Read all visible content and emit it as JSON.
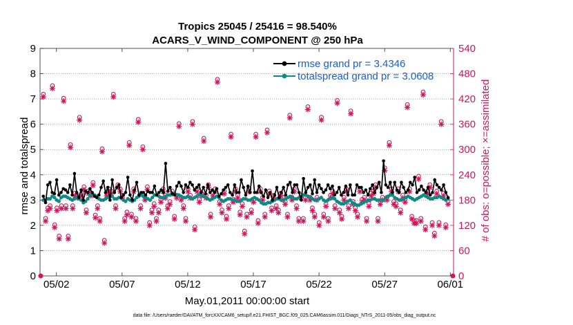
{
  "chart_data": {
    "type": "line",
    "title_line1": "Tropics 25045 / 25416 = 98.540%",
    "title_line2": "ACARS_V_WIND_COMPONENT @ 250 hPa",
    "xlabel": "May.01,2011 00:00:00 start",
    "ylabel_left": "rmse and totalspread",
    "ylabel_right": "# of obs: o=possible; ×=assimilated",
    "footer": "data file: /Users/raeder/DAI/ATM_forcXX/CAM6_setup/f.e21.FHIST_BGC.f09_025.CAM6assim.011/Diags_NTrS_2011-05/obs_diag_output.nc",
    "x_ticks": [
      "05/02",
      "05/07",
      "05/12",
      "05/17",
      "05/22",
      "05/27",
      "06/01"
    ],
    "x_tick_days": [
      2,
      7,
      12,
      17,
      22,
      27,
      32
    ],
    "xlim": [
      0.75,
      32.25
    ],
    "ylim_left": [
      0,
      9
    ],
    "y_ticks_left": [
      "0",
      "1",
      "2",
      "3",
      "4",
      "5",
      "6",
      "7",
      "8",
      "9"
    ],
    "ylim_right": [
      0,
      540
    ],
    "y_ticks_right": [
      "0",
      "60",
      "120",
      "180",
      "240",
      "300",
      "360",
      "420",
      "480",
      "540"
    ],
    "legend": [
      "rmse grand pr = 3.4346",
      "totalspread grand pr = 3.0608"
    ],
    "colors": {
      "rmse": "#000000",
      "spread": "#0e8a86",
      "obs": "#d4145a",
      "legend_text": "#1a5ed6"
    },
    "series": [
      {
        "name": "rmse",
        "values": [
          3.15,
          2.9,
          3.6,
          3.7,
          3.3,
          3.25,
          3.8,
          3.2,
          3.3,
          3.45,
          3.4,
          3.3,
          3.6,
          3.2,
          4.05,
          3.3,
          3.1,
          3.4,
          3.0,
          3.35,
          3.3,
          3.45,
          3.3,
          3.15,
          3.1,
          3.2,
          3.5,
          3.75,
          3.3,
          3.5,
          3.0,
          3.8,
          3.3,
          3.5,
          3.6,
          3.1,
          3.2,
          3.3,
          3.9,
          3.2,
          3.0,
          3.4,
          3.7,
          3.2,
          3.3,
          3.3,
          3.2,
          3.35,
          3.3,
          3.3,
          3.55,
          3.2,
          3.3,
          3.4,
          3.3,
          4.45,
          3.35,
          3.5,
          3.25,
          3.2,
          3.55,
          3.7,
          3.55,
          3.3,
          3.6,
          3.5,
          3.7,
          3.6,
          3.4,
          3.5,
          3.6,
          3.3,
          3.5,
          3.25,
          3.6,
          3.3,
          3.4,
          3.3,
          3.45,
          3.15,
          3.25,
          3.4,
          3.5,
          3.6,
          3.3,
          3.2,
          3.6,
          3.3,
          3.3,
          3.8,
          3.5,
          3.2,
          3.55,
          3.3,
          4.15,
          3.3,
          3.3,
          3.55,
          3.3,
          3.15,
          3.4,
          3.1,
          3.3,
          3.0,
          3.2,
          3.5,
          3.1,
          3.3,
          3.5,
          3.2,
          3.6,
          3.7,
          3.3,
          3.6,
          3.6,
          3.3,
          3.0,
          3.85,
          3.3,
          3.5,
          3.6,
          3.25,
          3.8,
          3.3,
          3.6,
          3.45,
          3.3,
          3.4,
          3.6,
          3.45,
          3.55,
          3.2,
          3.3,
          3.5,
          3.2,
          3.3,
          3.55,
          3.2,
          3.6,
          3.2,
          3.2,
          3.6,
          3.5,
          3.5,
          3.3,
          3.4,
          3.2,
          3.45,
          3.6,
          3.3,
          3.5,
          3.7,
          3.3,
          4.55,
          3.6,
          3.5,
          3.7,
          3.3,
          3.7,
          3.4,
          3.3,
          3.7,
          3.5,
          3.3,
          3.4,
          3.7,
          3.6,
          3.9,
          3.3,
          3.4,
          3.55,
          3.4,
          3.3,
          3.5,
          3.2,
          3.3,
          3.8,
          3.6,
          3.5,
          3.4,
          3.6,
          3.3,
          3.1
        ]
      },
      {
        "name": "totalspread",
        "values": [
          3.0,
          3.0,
          3.05,
          3.05,
          3.15,
          3.1,
          3.0,
          2.95,
          3.1,
          3.15,
          3.15,
          3.1,
          3.05,
          3.0,
          3.05,
          3.1,
          3.05,
          3.0,
          2.9,
          2.95,
          3.05,
          3.2,
          3.25,
          3.2,
          3.15,
          3.05,
          3.0,
          3.0,
          3.05,
          3.1,
          3.15,
          3.15,
          3.05,
          3.05,
          3.1,
          3.1,
          3.0,
          2.95,
          3.05,
          3.0,
          2.95,
          3.0,
          3.1,
          3.15,
          3.2,
          3.15,
          3.1,
          3.05,
          3.0,
          3.1,
          3.2,
          3.2,
          3.15,
          3.1,
          3.1,
          3.15,
          3.2,
          3.2,
          3.25,
          3.25,
          3.2,
          3.2,
          3.15,
          3.1,
          3.1,
          3.15,
          3.1,
          3.05,
          3.1,
          3.15,
          3.2,
          3.2,
          3.15,
          3.1,
          3.05,
          3.0,
          3.05,
          3.1,
          3.15,
          3.1,
          3.0,
          2.95,
          3.0,
          3.05,
          3.05,
          3.0,
          3.0,
          2.95,
          2.95,
          3.0,
          3.05,
          3.05,
          3.0,
          3.0,
          3.05,
          3.1,
          3.05,
          3.0,
          2.9,
          2.85,
          2.85,
          2.9,
          2.9,
          2.95,
          3.0,
          3.05,
          3.05,
          3.0,
          3.0,
          3.05,
          3.1,
          3.15,
          3.1,
          3.05,
          3.05,
          3.1,
          3.15,
          3.2,
          3.2,
          3.15,
          3.1,
          3.05,
          3.0,
          3.0,
          3.05,
          3.1,
          3.0,
          2.95,
          3.0,
          3.05,
          3.1,
          3.05,
          2.95,
          2.9,
          2.85,
          2.85,
          2.9,
          2.95,
          3.0,
          2.9,
          2.85,
          2.8,
          2.8,
          2.85,
          2.9,
          2.95,
          3.0,
          3.0,
          3.05,
          3.05,
          3.0,
          3.0,
          3.0,
          3.0,
          3.1,
          3.15,
          3.2,
          3.2,
          3.1,
          3.05,
          3.0,
          3.0,
          3.05,
          3.1,
          3.15,
          3.1,
          3.05,
          3.0,
          3.05,
          3.1,
          3.15,
          3.2,
          3.15,
          3.1,
          3.05,
          3.05,
          3.1,
          3.1,
          3.15,
          3.1,
          3.05,
          3.0,
          3.05
        ]
      }
    ],
    "obs_counts": {
      "name": "# of obs",
      "values": [
        425,
        130,
        155,
        160,
        445,
        115,
        155,
        88,
        160,
        415,
        160,
        88,
        305,
        160,
        190,
        185,
        370,
        190,
        205,
        150,
        195,
        190,
        215,
        138,
        160,
        130,
        295,
        78,
        190,
        200,
        195,
        425,
        160,
        210,
        200,
        185,
        130,
        145,
        310,
        140,
        200,
        130,
        365,
        160,
        300,
        180,
        205,
        120,
        150,
        165,
        130,
        150,
        175,
        200,
        185,
        160,
        170,
        195,
        135,
        185,
        355,
        180,
        160,
        130,
        200,
        185,
        360,
        110,
        200,
        175,
        190,
        320,
        185,
        210,
        140,
        190,
        200,
        460,
        170,
        150,
        195,
        135,
        160,
        330,
        175,
        200,
        185,
        145,
        165,
        100,
        140,
        200,
        150,
        175,
        330,
        125,
        200,
        180,
        140,
        340,
        195,
        155,
        185,
        160,
        150,
        190,
        180,
        170,
        140,
        375,
        180,
        200,
        160,
        130,
        185,
        130,
        180,
        395,
        180,
        155,
        140,
        180,
        120,
        370,
        140,
        165,
        130,
        185,
        195,
        160,
        410,
        150,
        135,
        180,
        200,
        160,
        385,
        170,
        155,
        140,
        200,
        175,
        180,
        130,
        165,
        190,
        195,
        210,
        130,
        170,
        180,
        250,
        180,
        310,
        200,
        170,
        165,
        200,
        150,
        185,
        175,
        400,
        200,
        135,
        125,
        125,
        230,
        130,
        430,
        110,
        195,
        210,
        120,
        95,
        195,
        120,
        360,
        190,
        115,
        170
      ]
    },
    "left_axis_color": "#000000",
    "right_axis_color": "#d4145a"
  }
}
